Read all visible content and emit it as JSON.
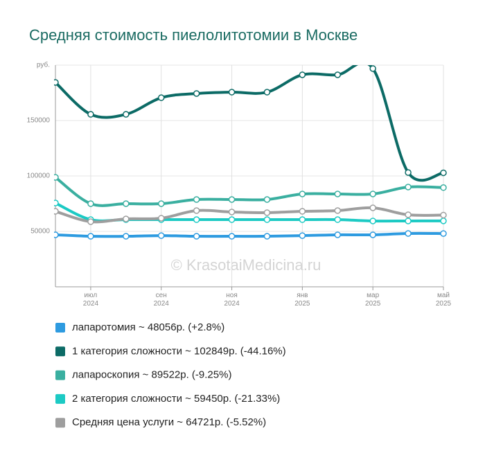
{
  "chart_data": {
    "type": "line",
    "title": "Средняя стоимость пиелолитотомии в Москве",
    "watermark": "© KrasotaiMedicina.ru",
    "categories": [
      null,
      "июл 2024",
      null,
      "сен 2024",
      null,
      "ноя 2024",
      null,
      "янв 2025",
      null,
      "мар 2025",
      null,
      "май 2025"
    ],
    "ylim": [
      0,
      200000
    ],
    "yticks": [
      50000,
      100000,
      150000,
      {
        "value": 200000,
        "label": "руб."
      }
    ],
    "grid": true,
    "series": [
      {
        "name": "лапаротомия ~ 48056р. (+2.8%)",
        "color": "#2e9be0",
        "values": [
          46900,
          45600,
          45600,
          46200,
          45600,
          45600,
          45600,
          46200,
          46900,
          46900,
          48100,
          48056
        ]
      },
      {
        "name": "1 категория сложности ~ 102849р. (-44.16%)",
        "color": "#0c6b66",
        "values": [
          184400,
          155600,
          155600,
          170600,
          174400,
          175600,
          175600,
          191250,
          191250,
          196900,
          103100,
          102849
        ]
      },
      {
        "name": "лапароскопия ~ 89522р. (-9.25%)",
        "color": "#3aafa0",
        "values": [
          98750,
          75000,
          75000,
          75000,
          78750,
          78750,
          78750,
          83750,
          83750,
          83750,
          90000,
          89522
        ]
      },
      {
        "name": "2 категория сложности ~ 59450р. (-21.33%)",
        "color": "#1ccac4",
        "values": [
          75600,
          60600,
          60600,
          60600,
          60600,
          60600,
          60600,
          60600,
          60600,
          59400,
          59400,
          59450
        ]
      },
      {
        "name": "Средняя цена услуги ~ 64721р. (-5.52%)",
        "color": "#9e9e9e",
        "values": [
          68100,
          58750,
          61250,
          61900,
          68750,
          67500,
          66900,
          68100,
          68750,
          71250,
          65000,
          64721
        ]
      }
    ]
  }
}
